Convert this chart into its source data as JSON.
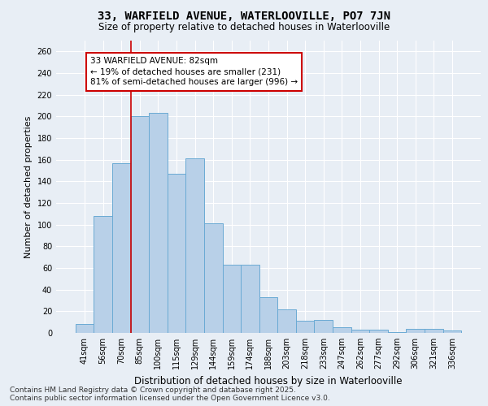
{
  "title": "33, WARFIELD AVENUE, WATERLOOVILLE, PO7 7JN",
  "subtitle": "Size of property relative to detached houses in Waterlooville",
  "xlabel": "Distribution of detached houses by size in Waterlooville",
  "ylabel": "Number of detached properties",
  "categories": [
    "41sqm",
    "56sqm",
    "70sqm",
    "85sqm",
    "100sqm",
    "115sqm",
    "129sqm",
    "144sqm",
    "159sqm",
    "174sqm",
    "188sqm",
    "203sqm",
    "218sqm",
    "233sqm",
    "247sqm",
    "262sqm",
    "277sqm",
    "292sqm",
    "306sqm",
    "321sqm",
    "336sqm"
  ],
  "values": [
    8,
    108,
    157,
    200,
    203,
    147,
    161,
    101,
    63,
    63,
    33,
    22,
    11,
    12,
    5,
    3,
    3,
    1,
    4,
    4,
    2
  ],
  "bar_color": "#b8d0e8",
  "bar_edge_color": "#6aaad4",
  "vline_index": 3,
  "annotation_line1": "33 WARFIELD AVENUE: 82sqm",
  "annotation_line2": "← 19% of detached houses are smaller (231)",
  "annotation_line3": "81% of semi-detached houses are larger (996) →",
  "annotation_box_facecolor": "#ffffff",
  "annotation_box_edgecolor": "#cc0000",
  "vline_color": "#cc0000",
  "ylim": [
    0,
    270
  ],
  "yticks": [
    0,
    20,
    40,
    60,
    80,
    100,
    120,
    140,
    160,
    180,
    200,
    220,
    240,
    260
  ],
  "footer": "Contains HM Land Registry data © Crown copyright and database right 2025.\nContains public sector information licensed under the Open Government Licence v3.0.",
  "background_color": "#e8eef5",
  "plot_background_color": "#e8eef5",
  "grid_color": "#ffffff",
  "title_fontsize": 10,
  "subtitle_fontsize": 8.5,
  "ylabel_fontsize": 8,
  "xlabel_fontsize": 8.5,
  "tick_fontsize": 7,
  "annotation_fontsize": 7.5,
  "footer_fontsize": 6.5
}
